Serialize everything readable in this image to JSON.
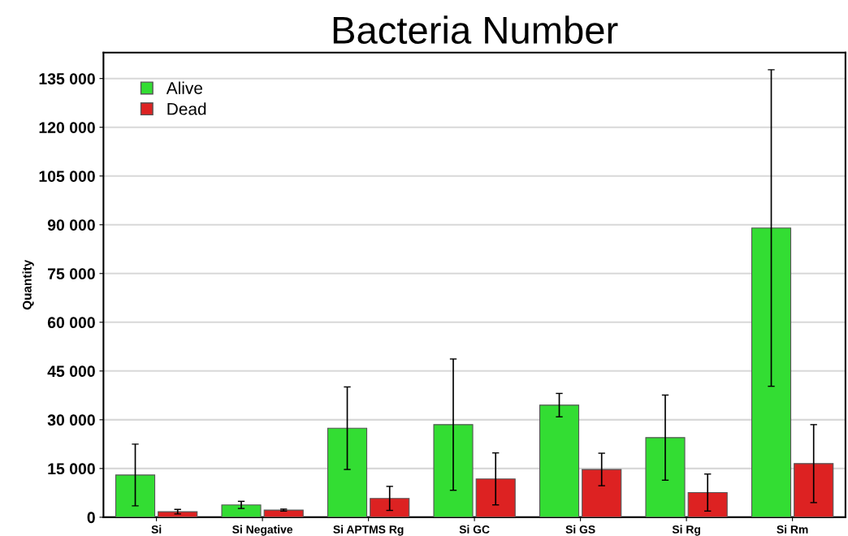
{
  "chart_data": {
    "type": "bar",
    "title": "Bacteria Number",
    "ylabel": "Quantity",
    "categories": [
      "Si",
      "Si Negative",
      "Si APTMS Rg",
      "Si GC",
      "Si GS",
      "Si Rg",
      "Si Rm"
    ],
    "series": [
      {
        "name": "Alive",
        "color": "#33dd33",
        "values": [
          13000,
          3800,
          27400,
          28500,
          34500,
          24500,
          89000
        ],
        "errors": [
          9500,
          1100,
          12700,
          20200,
          3600,
          13100,
          48700
        ]
      },
      {
        "name": "Dead",
        "color": "#dd2222",
        "values": [
          1700,
          2200,
          5800,
          11800,
          14700,
          7600,
          16500
        ],
        "errors": [
          700,
          300,
          3700,
          8000,
          5000,
          5700,
          12000
        ]
      }
    ],
    "ylim": [
      0,
      143000
    ],
    "yticks": [
      {
        "value": 0,
        "label": "0"
      },
      {
        "value": 15000,
        "label": "15 000"
      },
      {
        "value": 30000,
        "label": "30 000"
      },
      {
        "value": 45000,
        "label": "45 000"
      },
      {
        "value": 60000,
        "label": "60 000"
      },
      {
        "value": 75000,
        "label": "75 000"
      },
      {
        "value": 90000,
        "label": "90 000"
      },
      {
        "value": 105000,
        "label": "105 000"
      },
      {
        "value": 120000,
        "label": "120 000"
      },
      {
        "value": 135000,
        "label": "135 000"
      }
    ],
    "grid": "y",
    "legend": "top left"
  }
}
